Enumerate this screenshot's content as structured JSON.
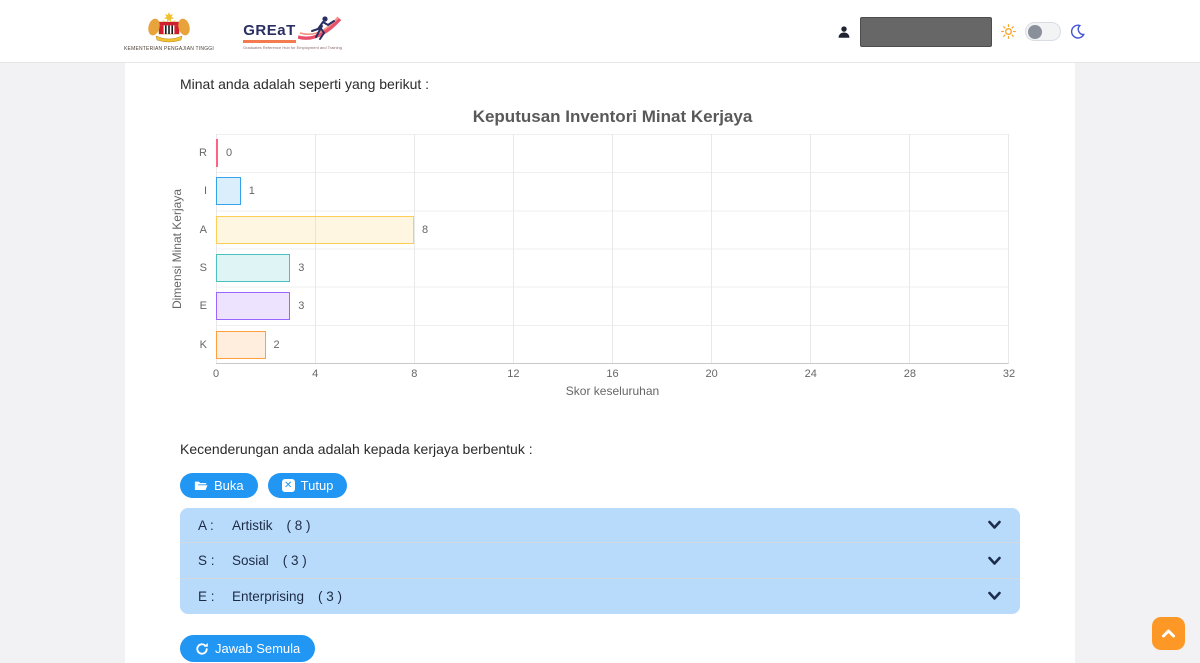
{
  "header": {
    "ministry_logo_label": "KEMENTERIAN PENGAJIAN TINGGI",
    "great_logo_text": "GREaT",
    "great_logo_tagline": "Graduates Reference Hub for Employment and Training"
  },
  "main": {
    "intro_text": "Minat anda adalah seperti yang berikut :",
    "tendency_text": "Kecenderungan anda adalah kepada kerjaya berbentuk :",
    "buttons": {
      "open_label": "Buka",
      "close_label": "Tutup",
      "retry_label": "Jawab Semula"
    },
    "accordion": [
      {
        "code": "A :",
        "name": "Artistik",
        "score": "( 8 )"
      },
      {
        "code": "S :",
        "name": "Sosial",
        "score": "( 3 )"
      },
      {
        "code": "E :",
        "name": "Enterprising",
        "score": "( 3 )"
      }
    ]
  },
  "chart_data": {
    "type": "bar",
    "orientation": "horizontal",
    "title": "Keputusan Inventori Minat Kerjaya",
    "categories": [
      "R",
      "I",
      "A",
      "S",
      "E",
      "K"
    ],
    "values": [
      0,
      1,
      8,
      3,
      3,
      2
    ],
    "bar_border_colors": [
      "#FF6384",
      "#36A2EB",
      "#FFCE56",
      "#4BC0C0",
      "#9966FF",
      "#FF9F40"
    ],
    "bar_fill_colors": [
      "rgba(255,99,132,0.18)",
      "rgba(54,162,235,0.18)",
      "rgba(255,206,86,0.18)",
      "rgba(75,192,192,0.18)",
      "rgba(153,102,255,0.18)",
      "rgba(255,159,64,0.18)"
    ],
    "xlabel": "Skor keseluruhan",
    "ylabel": "Dimensi Minat Kerjaya",
    "xlim": [
      0,
      32
    ],
    "xticks": [
      0,
      4,
      8,
      12,
      16,
      20,
      24,
      28,
      32
    ],
    "grid": true,
    "legend": false
  },
  "colors": {
    "primary_blue": "#2196f3",
    "accordion_blue": "#b9dbfb",
    "scroll_top_orange": "#fd9826"
  }
}
